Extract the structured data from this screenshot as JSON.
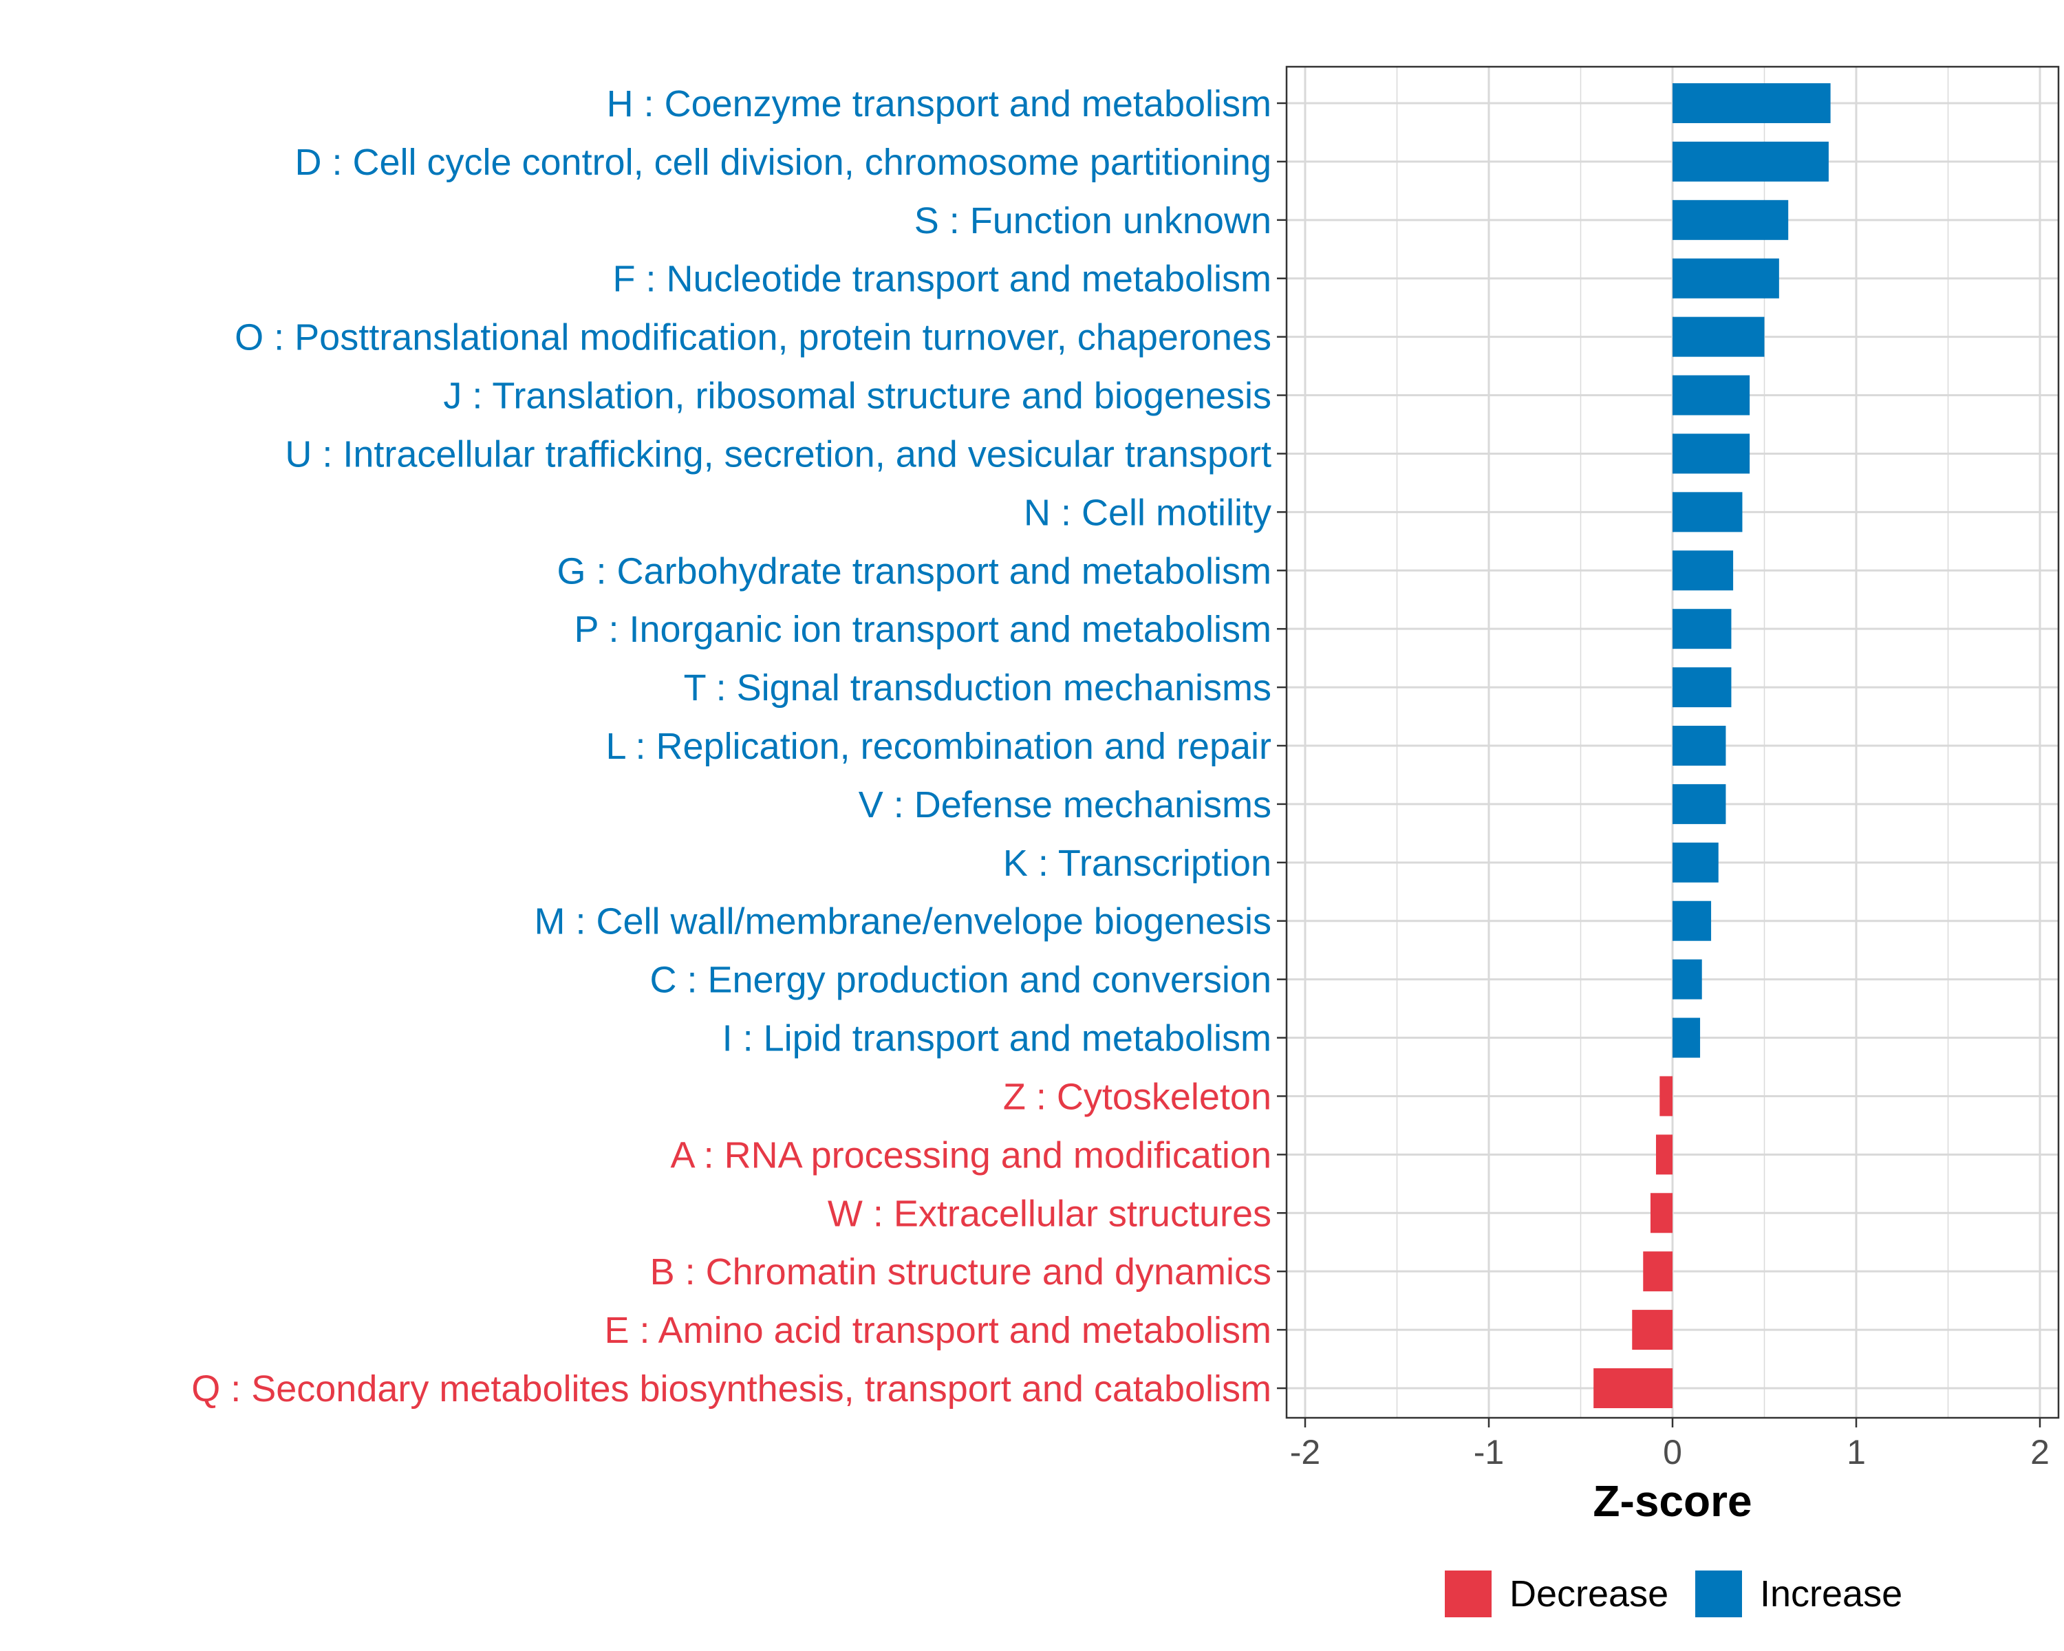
{
  "chart_data": {
    "type": "bar",
    "orientation": "horizontal",
    "categories": [
      "H : Coenzyme transport and metabolism",
      "D : Cell cycle control, cell division, chromosome partitioning",
      "S : Function unknown",
      "F : Nucleotide transport and metabolism",
      "O : Posttranslational modification, protein turnover, chaperones",
      "J : Translation, ribosomal structure and biogenesis",
      "U : Intracellular trafficking, secretion, and vesicular transport",
      "N : Cell motility",
      "G : Carbohydrate transport and metabolism",
      "P : Inorganic ion transport and metabolism",
      "T : Signal transduction mechanisms",
      "L : Replication, recombination and repair",
      "V : Defense mechanisms",
      "K : Transcription",
      "M : Cell wall/membrane/envelope biogenesis",
      "C : Energy production and conversion",
      "I : Lipid transport and metabolism",
      "Z : Cytoskeleton",
      "A : RNA processing and modification",
      "W : Extracellular structures",
      "B : Chromatin structure and dynamics",
      "E : Amino acid transport and metabolism",
      "Q : Secondary metabolites biosynthesis, transport and catabolism"
    ],
    "values": [
      0.86,
      0.85,
      0.63,
      0.58,
      0.5,
      0.42,
      0.42,
      0.38,
      0.33,
      0.32,
      0.32,
      0.29,
      0.29,
      0.25,
      0.21,
      0.16,
      0.15,
      -0.07,
      -0.09,
      -0.12,
      -0.16,
      -0.22,
      -0.43
    ],
    "groups": [
      "Increase",
      "Increase",
      "Increase",
      "Increase",
      "Increase",
      "Increase",
      "Increase",
      "Increase",
      "Increase",
      "Increase",
      "Increase",
      "Increase",
      "Increase",
      "Increase",
      "Increase",
      "Increase",
      "Increase",
      "Decrease",
      "Decrease",
      "Decrease",
      "Decrease",
      "Decrease",
      "Decrease"
    ],
    "xlabel": "Z-score",
    "ylabel": "",
    "xlim": [
      -2,
      2
    ],
    "xticks": [
      -2,
      -1,
      0,
      1,
      2
    ],
    "grid": true,
    "legend": {
      "placement": "bottom",
      "entries": [
        {
          "label": "Decrease",
          "color": "#e63946"
        },
        {
          "label": "Increase",
          "color": "#0077bb"
        }
      ]
    }
  },
  "colors": {
    "Increase": "#0077bb",
    "Decrease": "#e63946",
    "grid": "#d9d9d9",
    "panel_border": "#333333"
  }
}
